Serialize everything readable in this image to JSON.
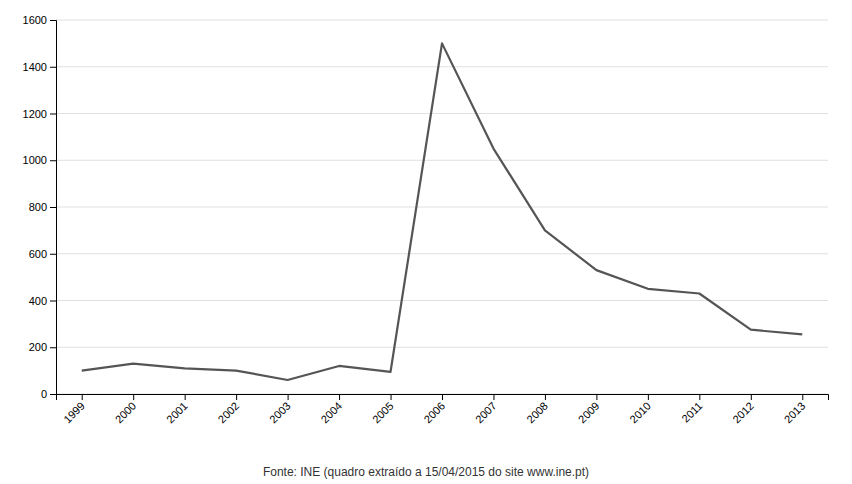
{
  "chart_data": {
    "type": "line",
    "caption": "Fonte: INE (quadro extraído a 15/04/2015 do site www.ine.pt)",
    "x": [
      1999,
      2000,
      2001,
      2002,
      2003,
      2004,
      2005,
      2006,
      2007,
      2008,
      2009,
      2010,
      2011,
      2012,
      2013
    ],
    "values": [
      100,
      130,
      110,
      100,
      60,
      120,
      95,
      1500,
      1050,
      700,
      530,
      450,
      430,
      275,
      255
    ],
    "color": "#555555",
    "xlim": [
      1998.5,
      2013.5
    ],
    "xticks": [
      1999,
      2000,
      2001,
      2002,
      2003,
      2004,
      2005,
      2006,
      2007,
      2008,
      2009,
      2010,
      2011,
      2012,
      2013
    ],
    "ylim": [
      0,
      1600
    ],
    "yticks": [
      0,
      200,
      400,
      600,
      800,
      1000,
      1200,
      1400,
      1600
    ],
    "grid": true
  }
}
